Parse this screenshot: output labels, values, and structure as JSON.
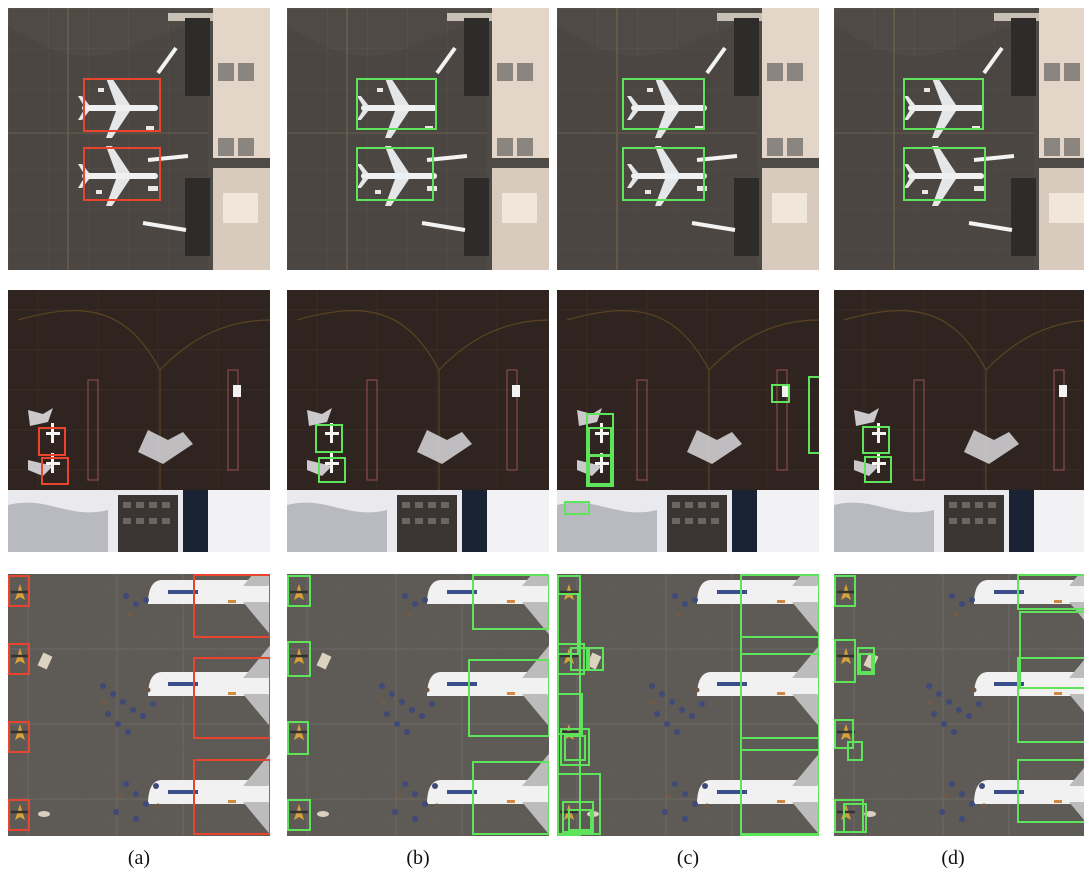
{
  "captions": [
    "(a)",
    "(b)",
    "(c)",
    "(d)"
  ],
  "colors": {
    "ground_truth_box": "#e8442e",
    "prediction_box": "#5fe35a"
  }
}
